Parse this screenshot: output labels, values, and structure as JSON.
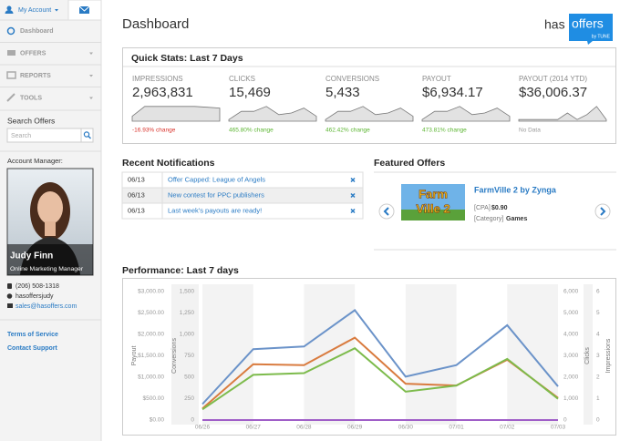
{
  "sidebar": {
    "account": "My Account",
    "nav": [
      "Dashboard",
      "OFFERS",
      "REPORTS",
      "TOOLS"
    ],
    "search_label": "Search Offers",
    "search_placeholder": "Search",
    "manager_label": "Account Manager:",
    "manager_name": "Judy Finn",
    "manager_role": "Online Marketing Manager",
    "phone": "(206) 508-1318",
    "skype": "hasoffersjudy",
    "email": "sales@hasoffers.com",
    "links": [
      "Terms of Service",
      "Contact Support"
    ]
  },
  "header": {
    "title": "Dashboard",
    "logo": {
      "has": "has",
      "offers": "offers",
      "by": "by TUNE"
    }
  },
  "quick_stats": {
    "title": "Quick Stats: Last 7 Days",
    "stats": [
      {
        "label": "IMPRESSIONS",
        "value": "2,963,831",
        "change": "-16.93% change",
        "change_color": "#d9322b",
        "trend": [
          3,
          9,
          9,
          9,
          9,
          9,
          8.5,
          8
        ]
      },
      {
        "label": "CLICKS",
        "value": "15,469",
        "change": "465.80% change",
        "change_color": "#5bb531",
        "trend": [
          1,
          6,
          6,
          9,
          4,
          5,
          8,
          3
        ]
      },
      {
        "label": "CONVERSIONS",
        "value": "5,433",
        "change": "462.42% change",
        "change_color": "#5bb531",
        "trend": [
          1,
          6,
          6,
          9,
          4,
          5,
          8,
          3
        ]
      },
      {
        "label": "PAYOUT",
        "value": "$6,934.17",
        "change": "473.81% change",
        "change_color": "#5bb531",
        "trend": [
          1,
          6,
          6,
          9,
          4,
          5,
          8,
          3
        ]
      },
      {
        "label": "PAYOUT (2014 YTD)",
        "value": "$36,006.37",
        "change": "No Data",
        "change_color": "#999999",
        "trend": [
          1,
          1,
          1,
          1,
          1,
          5,
          1,
          4,
          9,
          1
        ]
      }
    ]
  },
  "notifications": {
    "title": "Recent Notifications",
    "items": [
      {
        "date": "06/13",
        "text": "Offer Capped: League of Angels"
      },
      {
        "date": "06/13",
        "text": "New contest for PPC publishers"
      },
      {
        "date": "06/13",
        "text": "Last week's payouts are ready!"
      }
    ]
  },
  "featured": {
    "title": "Featured Offers",
    "image_text": [
      "Farm",
      "Ville 2"
    ],
    "name": "FarmVille 2 by Zynga",
    "price_tag": "[CPA]",
    "price": "$0.90",
    "category_tag": "[Category]",
    "category": "Games"
  },
  "chart_data": {
    "type": "line",
    "title": "Performance: Last 7 days",
    "categories": [
      "06/26",
      "06/27",
      "06/28",
      "06/29",
      "06/30",
      "07/01",
      "07/02",
      "07/03"
    ],
    "axes": [
      {
        "label": "Payout",
        "ylim": [
          0,
          3000
        ],
        "yticks": [
          {
            "value": 0,
            "label": "$0.00"
          },
          {
            "value": 500,
            "label": "$500.00"
          },
          {
            "value": 1000,
            "label": "$1,000.00"
          },
          {
            "value": 1500,
            "label": "$1,500.00"
          },
          {
            "value": 2000,
            "label": "$2,000.00"
          },
          {
            "value": 2500,
            "label": "$2,500.00"
          },
          {
            "value": 3000,
            "label": "$3,000.00"
          }
        ]
      },
      {
        "label": "Conversions",
        "ylim": [
          0,
          1500
        ],
        "yticks": [
          0,
          250,
          500,
          750,
          {
            "value": 1000,
            "label": "1,000"
          },
          {
            "value": 1250,
            "label": "1,250"
          },
          {
            "value": 1500,
            "label": "1,500"
          }
        ]
      },
      {
        "label": "Clicks",
        "ylim": [
          0,
          6000
        ],
        "yticks": [
          0,
          {
            "value": 1000,
            "label": "1,000"
          },
          {
            "value": 2000,
            "label": "2,000"
          },
          {
            "value": 3000,
            "label": "3,000"
          },
          {
            "value": 4000,
            "label": "4,000"
          },
          {
            "value": 5000,
            "label": "5,000"
          },
          {
            "value": 6000,
            "label": "6,000"
          }
        ]
      },
      {
        "label": "Impressions",
        "ylim": [
          0,
          6
        ],
        "yticks": [
          0,
          1,
          2,
          3,
          4,
          5,
          6
        ]
      }
    ],
    "series": [
      {
        "color": "#6b93c9",
        "axis": 2,
        "values": [
          745,
          3310,
          3434,
          5131,
          2028,
          2566,
          4428,
          1572
        ]
      },
      {
        "color": "#d97b3f",
        "axis": 0,
        "values": [
          269,
          1303,
          1283,
          1924,
          848,
          807,
          1407,
          517
        ]
      },
      {
        "color": "#7dbb4c",
        "axis": 1,
        "values": [
          124,
          528,
          548,
          838,
          331,
          403,
          714,
          248
        ]
      },
      {
        "color": "#a05fc8",
        "axis": 3,
        "values": [
          0,
          0,
          0,
          0,
          0,
          0,
          0,
          0
        ]
      }
    ]
  }
}
